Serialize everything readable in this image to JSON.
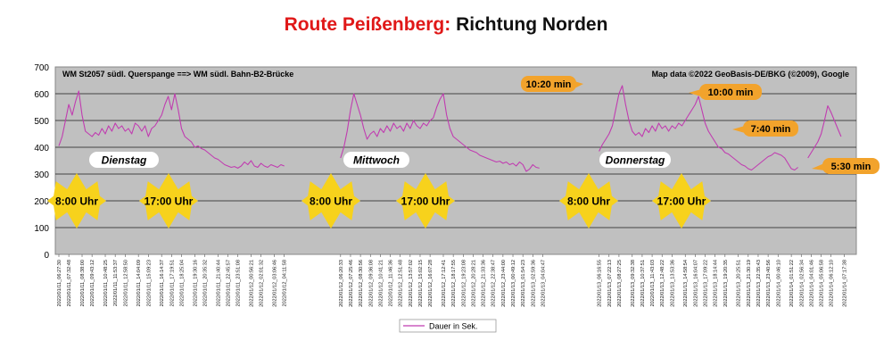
{
  "header": {
    "title_route": "Route Peißenberg:",
    "title_direction": "Richtung Norden"
  },
  "chart_data": {
    "type": "line",
    "plot_title_left": "WM St2057 südl. Querspange ==> WM südl. Bahn-B2-Brücke",
    "plot_title_right": "Map data ©2022 GeoBasis-DE/BKG (©2009), Google",
    "ylim": [
      0,
      700
    ],
    "yticks": [
      0,
      100,
      200,
      300,
      400,
      500,
      600,
      700
    ],
    "grid": true,
    "legend": {
      "position": "bottom-center",
      "label": "Dauer in Sek."
    },
    "colors": {
      "plot_bg": "#c0c0c0",
      "line": "#c03cb0",
      "callout": "#f2a32c",
      "time_marker": "#f7d21c"
    },
    "xticks": [
      "2022/01/11_06:27:30",
      "2022/01/11_07:32:48",
      "2022/01/11_08:38:00",
      "2022/01/11_09:43:12",
      "2022/01/11_10:48:25",
      "2022/01/11_11:53:37",
      "2022/01/11_12:58:50",
      "2022/01/11_14:04:09",
      "2022/01/11_15:09:23",
      "2022/01/11_16:14:37",
      "2022/01/11_17:19:51",
      "2022/01/11_18:25:04",
      "2022/01/11_19:30:16",
      "2022/01/11_20:35:32",
      "2022/01/11_21:40:44",
      "2022/01/11_22:45:57",
      "2022/01/11_23:51:08",
      "2022/01/12_00:56:21",
      "2022/01/12_02:01:32",
      "2022/01/12_03:06:46",
      "2022/01/12_04:11:58",
      "2022/01/12_06:20:33",
      "2022/01/12_07:25:46",
      "2022/01/12_08:30:56",
      "2022/01/12_09:36:08",
      "2022/01/12_10:41:21",
      "2022/01/12_11:46:36",
      "2022/01/12_12:51:48",
      "2022/01/12_13:57:02",
      "2022/01/12_15:02:15",
      "2022/01/12_16:07:28",
      "2022/01/12_17:12:41",
      "2022/01/12_18:17:55",
      "2022/01/12_19:23:08",
      "2022/01/12_20:28:21",
      "2022/01/12_21:33:36",
      "2022/01/12_22:38:47",
      "2022/01/12_23:44:00",
      "2022/01/13_00:49:12",
      "2022/01/13_01:54:23",
      "2022/01/13_02:59:36",
      "2022/01/13_04:04:47",
      "2022/01/13_06:16:55",
      "2022/01/13_07:22:13",
      "2022/01/13_08:27:25",
      "2022/01/13_09:32:38",
      "2022/01/13_10:37:51",
      "2022/01/13_11:43:03",
      "2022/01/13_12:48:22",
      "2022/01/13_13:53:36",
      "2022/01/13_14:58:54",
      "2022/01/13_16:04:07",
      "2022/01/13_17:09:22",
      "2022/01/13_18:14:44",
      "2022/01/13_19:20:35",
      "2022/01/13_20:25:51",
      "2022/01/13_21:30:19",
      "2022/01/13_22:35:43",
      "2022/01/13_23:40:56",
      "2022/01/14_00:46:10",
      "2022/01/14_01:51:22",
      "2022/01/14_02:56:34",
      "2022/01/14_04:01:46",
      "2022/01/14_05:06:58",
      "2022/01/14_06:12:10",
      "2022/01/14_07:17:38"
    ],
    "series": [
      {
        "name": "Dauer in Sek.",
        "segments": [
          [
            [
              0,
              405
            ],
            [
              1,
              440
            ],
            [
              2,
              500
            ],
            [
              3,
              560
            ],
            [
              4,
              520
            ],
            [
              5,
              570
            ],
            [
              6,
              610
            ],
            [
              7,
              520
            ],
            [
              8,
              460
            ],
            [
              9,
              450
            ],
            [
              10,
              440
            ],
            [
              11,
              455
            ],
            [
              12,
              445
            ],
            [
              13,
              470
            ],
            [
              14,
              450
            ],
            [
              15,
              480
            ],
            [
              16,
              460
            ],
            [
              17,
              490
            ],
            [
              18,
              470
            ],
            [
              19,
              480
            ],
            [
              20,
              460
            ],
            [
              21,
              470
            ],
            [
              22,
              450
            ],
            [
              23,
              490
            ],
            [
              24,
              480
            ],
            [
              25,
              460
            ],
            [
              26,
              480
            ],
            [
              27,
              440
            ],
            [
              28,
              470
            ],
            [
              29,
              480
            ],
            [
              30,
              500
            ],
            [
              31,
              520
            ],
            [
              32,
              560
            ],
            [
              33,
              590
            ],
            [
              34,
              540
            ],
            [
              35,
              600
            ],
            [
              36,
              540
            ],
            [
              37,
              470
            ],
            [
              38,
              440
            ],
            [
              39,
              430
            ],
            [
              40,
              420
            ],
            [
              41,
              400
            ],
            [
              42,
              405
            ],
            [
              43,
              395
            ],
            [
              44,
              390
            ],
            [
              45,
              380
            ],
            [
              46,
              370
            ],
            [
              47,
              360
            ],
            [
              48,
              355
            ],
            [
              49,
              345
            ],
            [
              50,
              335
            ],
            [
              51,
              330
            ],
            [
              52,
              325
            ],
            [
              53,
              328
            ],
            [
              54,
              322
            ],
            [
              55,
              330
            ],
            [
              56,
              345
            ],
            [
              57,
              335
            ],
            [
              58,
              350
            ],
            [
              59,
              330
            ],
            [
              60,
              325
            ],
            [
              61,
              340
            ],
            [
              62,
              330
            ],
            [
              63,
              325
            ],
            [
              64,
              335
            ],
            [
              65,
              330
            ],
            [
              66,
              325
            ],
            [
              67,
              335
            ],
            [
              68,
              330
            ]
          ],
          [
            [
              85,
              360
            ],
            [
              86,
              400
            ],
            [
              87,
              460
            ],
            [
              88,
              540
            ],
            [
              89,
              600
            ],
            [
              90,
              560
            ],
            [
              91,
              520
            ],
            [
              92,
              470
            ],
            [
              93,
              430
            ],
            [
              94,
              450
            ],
            [
              95,
              460
            ],
            [
              96,
              440
            ],
            [
              97,
              470
            ],
            [
              98,
              455
            ],
            [
              99,
              480
            ],
            [
              100,
              460
            ],
            [
              101,
              490
            ],
            [
              102,
              470
            ],
            [
              103,
              480
            ],
            [
              104,
              460
            ],
            [
              105,
              490
            ],
            [
              106,
              470
            ],
            [
              107,
              500
            ],
            [
              108,
              480
            ],
            [
              109,
              470
            ],
            [
              110,
              490
            ],
            [
              111,
              480
            ],
            [
              112,
              500
            ],
            [
              113,
              510
            ],
            [
              114,
              550
            ],
            [
              115,
              580
            ],
            [
              116,
              600
            ],
            [
              117,
              520
            ],
            [
              118,
              470
            ],
            [
              119,
              440
            ],
            [
              120,
              430
            ],
            [
              121,
              420
            ],
            [
              122,
              410
            ],
            [
              123,
              400
            ],
            [
              124,
              390
            ],
            [
              125,
              385
            ],
            [
              126,
              380
            ],
            [
              127,
              370
            ],
            [
              128,
              365
            ],
            [
              129,
              360
            ],
            [
              130,
              355
            ],
            [
              131,
              350
            ],
            [
              132,
              345
            ],
            [
              133,
              348
            ],
            [
              134,
              340
            ],
            [
              135,
              345
            ],
            [
              136,
              335
            ],
            [
              137,
              340
            ],
            [
              138,
              330
            ],
            [
              139,
              345
            ],
            [
              140,
              335
            ],
            [
              141,
              310
            ],
            [
              142,
              318
            ],
            [
              143,
              335
            ],
            [
              144,
              325
            ],
            [
              145,
              322
            ]
          ],
          [
            [
              163,
              385
            ],
            [
              164,
              410
            ],
            [
              165,
              430
            ],
            [
              166,
              450
            ],
            [
              167,
              480
            ],
            [
              168,
              540
            ],
            [
              169,
              600
            ],
            [
              170,
              630
            ],
            [
              171,
              560
            ],
            [
              172,
              500
            ],
            [
              173,
              460
            ],
            [
              174,
              445
            ],
            [
              175,
              455
            ],
            [
              176,
              440
            ],
            [
              177,
              470
            ],
            [
              178,
              455
            ],
            [
              179,
              480
            ],
            [
              180,
              460
            ],
            [
              181,
              490
            ],
            [
              182,
              470
            ],
            [
              183,
              480
            ],
            [
              184,
              460
            ],
            [
              185,
              480
            ],
            [
              186,
              470
            ],
            [
              187,
              490
            ],
            [
              188,
              480
            ],
            [
              189,
              500
            ],
            [
              190,
              520
            ],
            [
              191,
              540
            ],
            [
              192,
              560
            ],
            [
              193,
              590
            ],
            [
              194,
              540
            ],
            [
              195,
              490
            ],
            [
              196,
              460
            ],
            [
              197,
              440
            ],
            [
              198,
              420
            ],
            [
              199,
              400
            ],
            [
              200,
              395
            ],
            [
              201,
              380
            ],
            [
              202,
              375
            ],
            [
              203,
              365
            ],
            [
              204,
              355
            ],
            [
              205,
              345
            ],
            [
              206,
              335
            ],
            [
              207,
              330
            ],
            [
              208,
              320
            ],
            [
              209,
              315
            ],
            [
              210,
              325
            ],
            [
              211,
              335
            ],
            [
              212,
              345
            ],
            [
              213,
              355
            ],
            [
              214,
              365
            ],
            [
              215,
              370
            ],
            [
              216,
              380
            ],
            [
              217,
              375
            ],
            [
              218,
              370
            ],
            [
              219,
              360
            ],
            [
              220,
              340
            ],
            [
              221,
              320
            ],
            [
              222,
              315
            ],
            [
              223,
              325
            ]
          ],
          [
            [
              226,
              360
            ],
            [
              227,
              380
            ],
            [
              228,
              400
            ],
            [
              229,
              420
            ],
            [
              230,
              450
            ],
            [
              231,
              500
            ],
            [
              232,
              555
            ],
            [
              233,
              530
            ],
            [
              234,
              500
            ],
            [
              235,
              470
            ],
            [
              236,
              440
            ]
          ]
        ]
      }
    ],
    "day_labels": [
      "Dienstag",
      "Mittwoch",
      "Donnerstag"
    ],
    "time_markers": [
      "8:00 Uhr",
      "17:00 Uhr",
      "8:00 Uhr",
      "17:00 Uhr",
      "8:00 Uhr",
      "17:00 Uhr"
    ],
    "callouts": [
      {
        "text": "10:20 min",
        "value": 620
      },
      {
        "text": "10:00 min",
        "value": 600
      },
      {
        "text": "7:40 min",
        "value": 460
      },
      {
        "text": "5:30 min",
        "value": 330
      }
    ]
  }
}
